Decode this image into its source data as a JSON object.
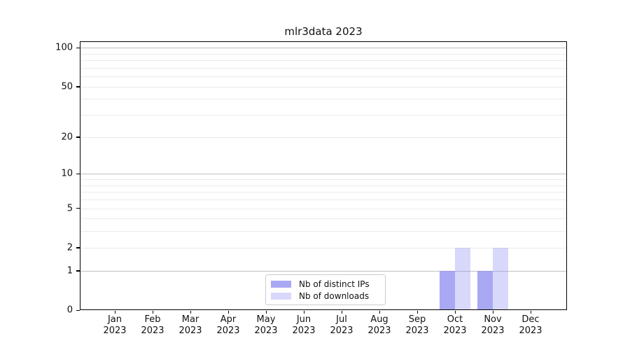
{
  "chart_data": {
    "type": "bar",
    "title": "mlr3data 2023",
    "categories": [
      "Jan 2023",
      "Feb 2023",
      "Mar 2023",
      "Apr 2023",
      "May 2023",
      "Jun 2023",
      "Jul 2023",
      "Aug 2023",
      "Sep 2023",
      "Oct 2023",
      "Nov 2023",
      "Dec 2023"
    ],
    "series": [
      {
        "name": "Nb of distinct IPs",
        "color": "rgba(143,143,240,0.78)",
        "values": [
          0,
          0,
          0,
          0,
          0,
          0,
          0,
          0,
          0,
          1,
          1,
          0
        ]
      },
      {
        "name": "Nb of downloads",
        "color": "rgba(143,143,240,0.35)",
        "values": [
          0,
          0,
          0,
          0,
          0,
          0,
          0,
          0,
          0,
          2,
          2,
          0
        ]
      }
    ],
    "xlabel": "",
    "ylabel": "",
    "yscale": "log1p",
    "ylim": [
      0,
      111
    ],
    "yticks": [
      0,
      1,
      2,
      5,
      10,
      20,
      50,
      100
    ],
    "major_gridlines": [
      1,
      10,
      100
    ],
    "minor_gridlines": [
      2,
      3,
      4,
      5,
      6,
      7,
      8,
      9,
      20,
      30,
      40,
      50,
      60,
      70,
      80,
      90
    ],
    "grid": "horizontal",
    "legend_position": "lower center"
  },
  "colors": {
    "background": "#ffffff",
    "axis": "#000000",
    "text": "#111111",
    "major_grid": "#c0c0c0",
    "minor_grid": "#ebebeb",
    "legend_border": "#cccccc"
  }
}
